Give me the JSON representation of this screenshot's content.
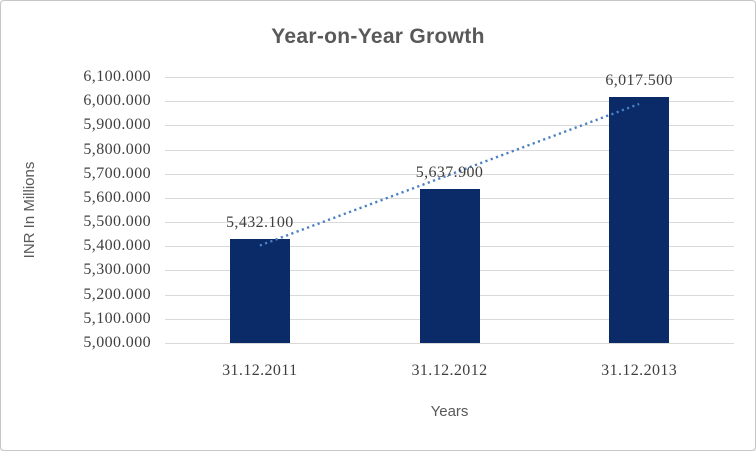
{
  "chart_data": {
    "type": "bar",
    "title": "Year-on-Year Growth",
    "categories": [
      "31.12.2011",
      "31.12.2012",
      "31.12.2013"
    ],
    "values": [
      5432.1,
      5637.9,
      6017.5
    ],
    "data_labels": [
      "5,432.100",
      "5,637.900",
      "6,017.500"
    ],
    "xlabel": "Years",
    "ylabel": "INR In Millions",
    "ylim": [
      5000,
      6100
    ],
    "ytick_step": 100,
    "ytick_labels_top_to_bottom": [
      "6,100.000",
      "6,000.000",
      "5,900.000",
      "5,800.000",
      "5,700.000",
      "5,600.000",
      "5,500.000",
      "5,400.000",
      "5,300.000",
      "5,200.000",
      "5,100.000",
      "5,000.000"
    ],
    "grid": "horizontal",
    "legend": false,
    "trendline": {
      "type": "linear",
      "style": "dotted"
    },
    "colors": {
      "bar": "#0a2a68",
      "trendline": "#4a80c4",
      "gridline": "#d9d9d9",
      "title_text": "#595959",
      "tick_text": "#3f3f3f",
      "axis_title_text": "#595959",
      "frame_border": "#c6c6c6",
      "background": "#ffffff"
    }
  }
}
